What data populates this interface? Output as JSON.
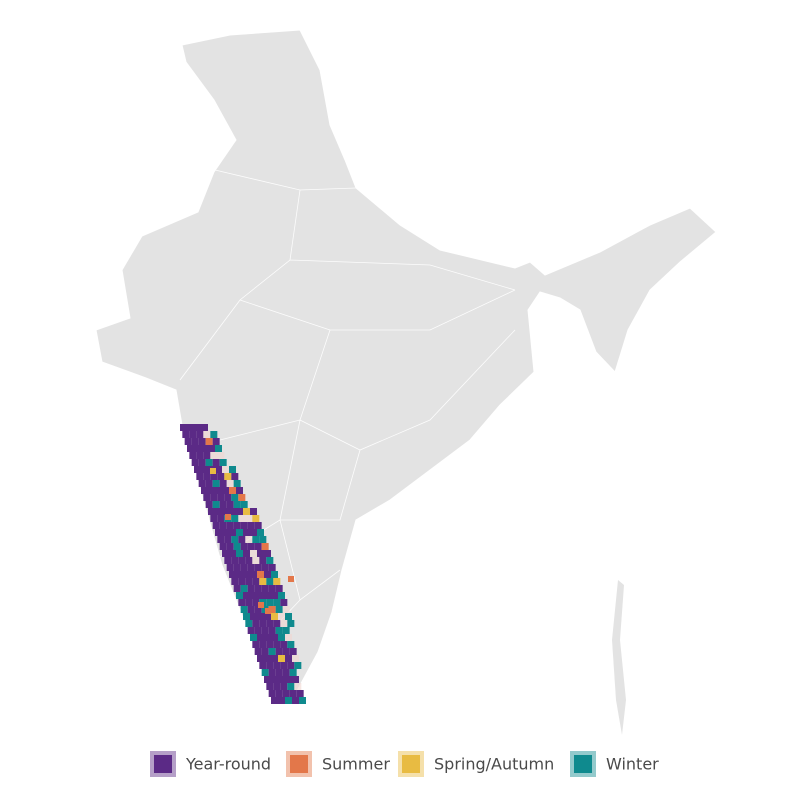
{
  "legend": {
    "items": [
      {
        "label": "Year-round",
        "color": "#5b2a86"
      },
      {
        "label": "Summer",
        "color": "#e3774a"
      },
      {
        "label": "Spring/Autumn",
        "color": "#e8bb42"
      },
      {
        "label": "Winter",
        "color": "#0f8a8e"
      }
    ]
  }
}
